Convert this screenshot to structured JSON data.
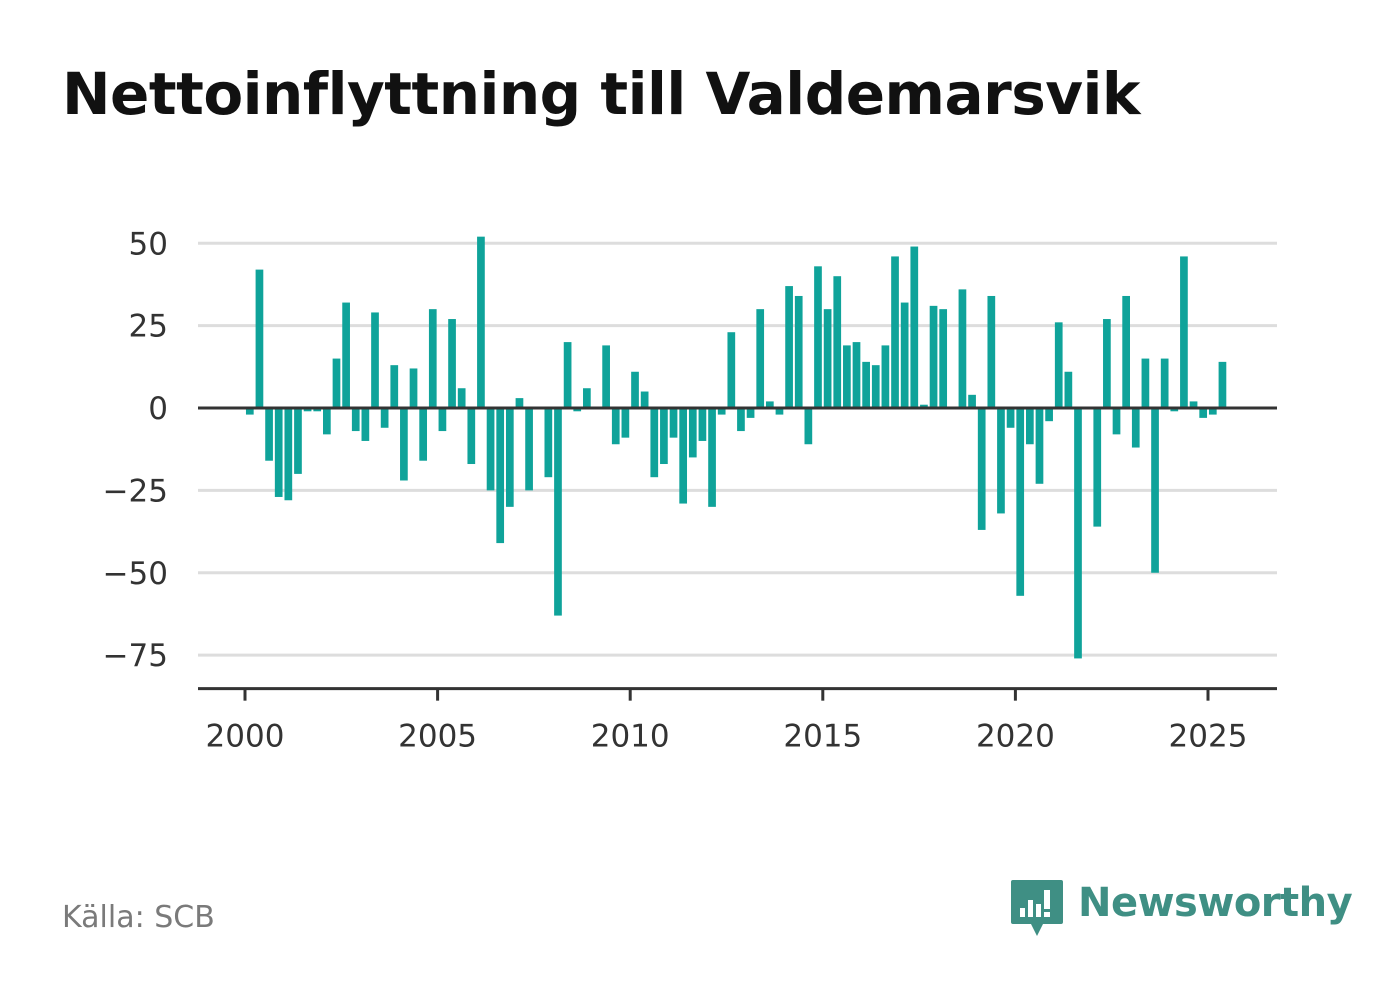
{
  "page": {
    "title": "Nettoinflyttning till Valdemarsvik",
    "source": "Källa: SCB",
    "brand": "Newsworthy"
  },
  "colors": {
    "bar": "#0fa39a",
    "grid": "#dddddd",
    "axis": "#333333",
    "tick_text": "#333333",
    "brand": "#3f8f84"
  },
  "chart_data": {
    "type": "bar",
    "title": "Nettoinflyttning till Valdemarsvik",
    "xlabel": "",
    "ylabel": "",
    "xlim": [
      1999.7,
      2027.7
    ],
    "ylim": [
      -87,
      60
    ],
    "yticks": [
      50,
      25,
      0,
      -25,
      -50,
      -75
    ],
    "ytick_labels": [
      "50",
      "25",
      "0",
      "−25",
      "−50",
      "−75"
    ],
    "xticks": [
      2000,
      2005,
      2010,
      2015,
      2020,
      2025
    ],
    "xtick_labels": [
      "2000",
      "2005",
      "2010",
      "2015",
      "2020",
      "2025"
    ],
    "grid": true,
    "legend": "none",
    "bar_width_years": 0.2,
    "x": [
      2000.125,
      2000.375,
      2000.625,
      2000.875,
      2001.125,
      2001.375,
      2001.625,
      2001.875,
      2002.125,
      2002.375,
      2002.625,
      2002.875,
      2003.125,
      2003.375,
      2003.625,
      2003.875,
      2004.125,
      2004.375,
      2004.625,
      2004.875,
      2005.125,
      2005.375,
      2005.625,
      2005.875,
      2006.125,
      2006.375,
      2006.625,
      2006.875,
      2007.125,
      2007.375,
      2007.625,
      2007.875,
      2008.125,
      2008.375,
      2008.625,
      2008.875,
      2009.125,
      2009.375,
      2009.625,
      2009.875,
      2010.125,
      2010.375,
      2010.625,
      2010.875,
      2011.125,
      2011.375,
      2011.625,
      2011.875,
      2012.125,
      2012.375,
      2012.625,
      2012.875,
      2013.125,
      2013.375,
      2013.625,
      2013.875,
      2014.125,
      2014.375,
      2014.625,
      2014.875,
      2015.125,
      2015.375,
      2015.625,
      2015.875,
      2016.125,
      2016.375,
      2016.625,
      2016.875,
      2017.125,
      2017.375,
      2017.625,
      2017.875,
      2018.125,
      2018.375,
      2018.625,
      2018.875,
      2019.125,
      2019.375,
      2019.625,
      2019.875,
      2020.125,
      2020.375,
      2020.625,
      2020.875,
      2021.125,
      2021.375,
      2021.625,
      2021.875,
      2022.125,
      2022.375,
      2022.625,
      2022.875,
      2023.125,
      2023.375,
      2023.625,
      2023.875,
      2024.125,
      2024.375,
      2024.625,
      2024.875,
      2025.125,
      2025.375
    ],
    "values": [
      -2,
      42,
      -16,
      -27,
      -28,
      -20,
      -1,
      -1,
      -8,
      15,
      32,
      -7,
      -10,
      29,
      -6,
      13,
      -22,
      12,
      -16,
      30,
      -7,
      27,
      6,
      -17,
      52,
      -25,
      -41,
      -30,
      3,
      -25,
      0,
      -21,
      -63,
      20,
      -1,
      6,
      0,
      19,
      -11,
      -9,
      11,
      5,
      -21,
      -17,
      -9,
      -29,
      -15,
      -10,
      -30,
      -2,
      23,
      -7,
      -3,
      30,
      2,
      -2,
      37,
      34,
      -11,
      43,
      30,
      40,
      19,
      20,
      14,
      13,
      19,
      46,
      32,
      49,
      1,
      31,
      30,
      0,
      36,
      4,
      -37,
      34,
      -32,
      -6,
      -57,
      -11,
      -23,
      -4,
      26,
      11,
      -76,
      0,
      -36,
      27,
      -8,
      34,
      -12,
      15,
      -50,
      15,
      -1,
      46,
      2,
      -3,
      -2,
      14
    ]
  }
}
